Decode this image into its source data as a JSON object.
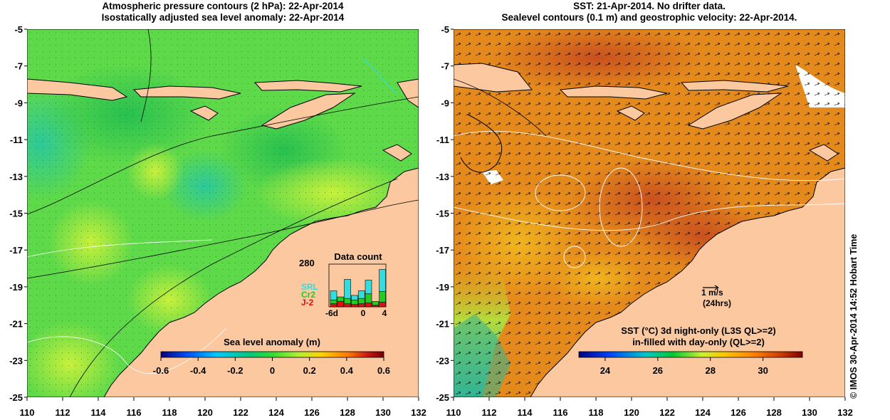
{
  "left_panel": {
    "title_line1": "Atmospheric pressure contours (2 hPa): 22-Apr-2014",
    "title_line2": "Isostatically adjusted sea level anomaly: 22-Apr-2014",
    "colorbar": {
      "label": "Sea level anomaly (m)",
      "ticks": [
        "-0.6",
        "-0.4",
        "-0.2",
        "0",
        "0.2",
        "0.4",
        "0.6"
      ]
    },
    "data_count": {
      "title": "Data count",
      "max_label": "280",
      "series_labels": [
        "SRL",
        "Cr2",
        "J-2"
      ],
      "series_colors": [
        "#33dddd",
        "#22cc22",
        "#dd1111"
      ],
      "x_labels": [
        "-6d",
        "0",
        "4"
      ],
      "bars": [
        {
          "j2": 20,
          "cr2": 25,
          "srl": 60
        },
        {
          "j2": 35,
          "cr2": 30,
          "srl": 0
        },
        {
          "j2": 20,
          "cr2": 35,
          "srl": 125
        },
        {
          "j2": 15,
          "cr2": 30,
          "srl": 30
        },
        {
          "j2": 20,
          "cr2": 35,
          "srl": 50
        },
        {
          "j2": 25,
          "cr2": 60,
          "srl": 90
        },
        {
          "j2": 10,
          "cr2": 25,
          "srl": 0
        },
        {
          "j2": 30,
          "cr2": 70,
          "srl": 145
        }
      ]
    }
  },
  "right_panel": {
    "title_line1": "SST: 21-Apr-2014. No drifter data.",
    "title_line2": "Sealevel contours (0.1 m) and geostrophic velocity: 22-Apr-2014.",
    "velocity_key_value": "1 m/s",
    "velocity_key_period": "(24hrs)",
    "colorbar": {
      "label_line1": "SST (°C) 3d night-only (L3S QL>=2)",
      "label_line2": "in-filled with day-only (QL>=2)",
      "ticks": [
        "24",
        "26",
        "28",
        "30"
      ]
    }
  },
  "axes": {
    "y_ticks": [
      "-5",
      "-7",
      "-9",
      "-11",
      "-13",
      "-15",
      "-17",
      "-19",
      "-21",
      "-23",
      "-25"
    ],
    "x_ticks": [
      "110",
      "112",
      "114",
      "116",
      "118",
      "120",
      "122",
      "124",
      "126",
      "128",
      "130",
      "132"
    ]
  },
  "credit": "© IMOS 30-Apr-2014 14:52 Hobart Time",
  "colors": {
    "land": "#fbc8a0",
    "sla_scale": [
      "#08007a",
      "#0050ff",
      "#00c8ff",
      "#00c878",
      "#32dc32",
      "#b4f032",
      "#ffd200",
      "#ff7800",
      "#c81414",
      "#780000"
    ],
    "sst_scale": [
      "#000082",
      "#0046ff",
      "#00c8c8",
      "#00c832",
      "#c8f032",
      "#ffc800",
      "#ff8200",
      "#d23c00",
      "#800000"
    ]
  }
}
